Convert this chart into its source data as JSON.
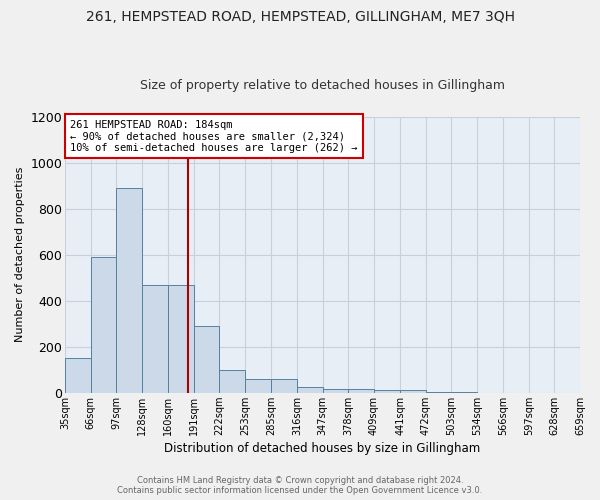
{
  "title": "261, HEMPSTEAD ROAD, HEMPSTEAD, GILLINGHAM, ME7 3QH",
  "subtitle": "Size of property relative to detached houses in Gillingham",
  "xlabel": "Distribution of detached houses by size in Gillingham",
  "ylabel": "Number of detached properties",
  "bin_edges": [
    35,
    66,
    97,
    128,
    160,
    191,
    222,
    253,
    285,
    316,
    347,
    378,
    409,
    441,
    472,
    503,
    534,
    566,
    597,
    628,
    659
  ],
  "bin_labels": [
    "35sqm",
    "66sqm",
    "97sqm",
    "128sqm",
    "160sqm",
    "191sqm",
    "222sqm",
    "253sqm",
    "285sqm",
    "316sqm",
    "347sqm",
    "378sqm",
    "409sqm",
    "441sqm",
    "472sqm",
    "503sqm",
    "534sqm",
    "566sqm",
    "597sqm",
    "628sqm",
    "659sqm"
  ],
  "bar_heights": [
    150,
    590,
    890,
    470,
    470,
    290,
    100,
    60,
    60,
    25,
    15,
    15,
    10,
    10,
    5,
    5,
    0,
    0,
    0,
    0
  ],
  "bar_color": "#ccd9e8",
  "bar_edge_color": "#5580a0",
  "vline_x": 184,
  "vline_color": "#aa0000",
  "annotation_text": "261 HEMPSTEAD ROAD: 184sqm\n← 90% of detached houses are smaller (2,324)\n10% of semi-detached houses are larger (262) →",
  "annotation_box_color": "#ffffff",
  "annotation_box_edge": "#cc0000",
  "ylim": [
    0,
    1200
  ],
  "yticks": [
    0,
    200,
    400,
    600,
    800,
    1000,
    1200
  ],
  "bg_color": "#e8eef6",
  "grid_color": "#c8d0dc",
  "fig_bg_color": "#f0f0f0",
  "footer_text": "Contains HM Land Registry data © Crown copyright and database right 2024.\nContains public sector information licensed under the Open Government Licence v3.0.",
  "title_fontsize": 10,
  "subtitle_fontsize": 9,
  "xlabel_fontsize": 8.5,
  "ylabel_fontsize": 8,
  "tick_fontsize": 7,
  "annotation_fontsize": 7.5,
  "footer_fontsize": 6
}
